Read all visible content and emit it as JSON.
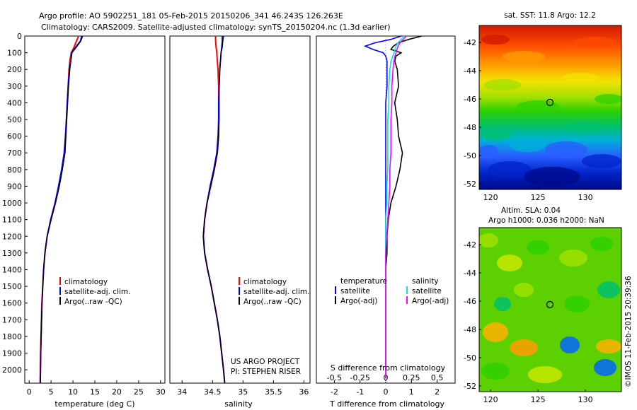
{
  "header": {
    "line1": "Argo profile: AO 5902251_181 05-Feb-2015 20150206_341 46.243S 126.263E",
    "line2": "Climatology: CARS2009. Satellite-adjusted climatology: synTS_20150204.nc (1.3d earlier)"
  },
  "side_stamp": "©IMOS 11-Feb-2015 20:39:36",
  "colors": {
    "climatology": "#ff0000",
    "satellite": "#0000ff",
    "argo": "#000000",
    "sal_satellite": "#00e5e5",
    "sal_argo": "#ff00ff",
    "float_marker": "#000000"
  },
  "legends": {
    "temperature_panel": [
      "climatology",
      "satellite-adj. clim.",
      "Argo(..raw -QC)"
    ],
    "salinity_panel": [
      "climatology",
      "satellite-adj. clim.",
      "Argo(..raw -QC)"
    ],
    "diff_panel": {
      "temperature_head": "temperature",
      "salinity_head": "salinity",
      "temperature_items": [
        "satellite",
        "Argo(-adj)"
      ],
      "salinity_items": [
        "satellite",
        "Argo(-adj)"
      ]
    }
  },
  "credits": {
    "line1": "US ARGO PROJECT",
    "line2": "PI: STEPHEN RISER"
  },
  "chart_data": [
    {
      "type": "line",
      "name": "temperature",
      "xlabel": "temperature (deg C)",
      "ylabel": "",
      "xlim": [
        -1,
        31
      ],
      "ylim": [
        2080,
        0
      ],
      "xticks": [
        0,
        5,
        10,
        15,
        20,
        25,
        30
      ],
      "yticks": [
        0,
        100,
        200,
        300,
        400,
        500,
        600,
        700,
        800,
        900,
        1000,
        1100,
        1200,
        1300,
        1400,
        1500,
        1600,
        1700,
        1800,
        1900,
        2000
      ],
      "depth": [
        0,
        30,
        70,
        100,
        150,
        200,
        300,
        400,
        500,
        600,
        700,
        800,
        900,
        1000,
        1100,
        1200,
        1300,
        1400,
        1500,
        1600,
        1700,
        1800,
        1900,
        2000,
        2080
      ],
      "series": [
        {
          "name": "climatology",
          "values": [
            11.3,
            10.8,
            10.2,
            9.6,
            9.3,
            9.1,
            8.9,
            8.7,
            8.5,
            8.3,
            8.0,
            7.5,
            6.8,
            6.0,
            5.0,
            4.1,
            3.6,
            3.3,
            3.1,
            2.9,
            2.8,
            2.7,
            2.6,
            2.55,
            2.5
          ]
        },
        {
          "name": "satellite-adj. clim.",
          "values": [
            12.0,
            11.7,
            10.5,
            9.7,
            9.5,
            9.2,
            8.9,
            8.7,
            8.5,
            8.3,
            8.0,
            7.4,
            6.7,
            5.9,
            4.9,
            4.1,
            3.6,
            3.3,
            3.1,
            2.95,
            2.85,
            2.75,
            2.65,
            2.6,
            2.55
          ]
        },
        {
          "name": "Argo(..raw -QC)",
          "values": [
            12.2,
            11.8,
            10.7,
            9.8,
            9.5,
            9.3,
            9.0,
            8.8,
            8.6,
            8.4,
            8.2,
            7.6,
            6.9,
            6.0,
            5.0,
            4.1,
            3.6,
            3.3,
            3.1,
            2.95,
            2.85,
            2.75,
            2.65,
            2.6,
            2.55
          ]
        }
      ]
    },
    {
      "type": "line",
      "name": "salinity",
      "xlabel": "salinity",
      "xlim": [
        33.8,
        36.1
      ],
      "ylim": [
        2080,
        0
      ],
      "xticks": [
        34,
        34.5,
        35,
        35.5,
        36
      ],
      "depth": [
        0,
        30,
        70,
        100,
        150,
        200,
        300,
        400,
        500,
        600,
        700,
        800,
        900,
        1000,
        1100,
        1200,
        1300,
        1400,
        1500,
        1600,
        1700,
        1800,
        1900,
        2000,
        2080
      ],
      "series": [
        {
          "name": "climatology",
          "values": [
            34.55,
            34.55,
            34.56,
            34.57,
            34.58,
            34.59,
            34.6,
            34.6,
            34.6,
            34.6,
            34.58,
            34.53,
            34.47,
            34.41,
            34.37,
            34.35,
            34.37,
            34.42,
            34.48,
            34.53,
            34.58,
            34.62,
            34.65,
            34.68,
            34.7
          ]
        },
        {
          "name": "satellite-adj. clim.",
          "values": [
            34.66,
            34.66,
            34.65,
            34.64,
            34.63,
            34.62,
            34.61,
            34.6,
            34.6,
            34.59,
            34.57,
            34.52,
            34.46,
            34.41,
            34.37,
            34.35,
            34.37,
            34.42,
            34.48,
            34.53,
            34.58,
            34.62,
            34.65,
            34.68,
            34.7
          ]
        },
        {
          "name": "Argo(..raw -QC)",
          "values": [
            34.68,
            34.67,
            34.66,
            34.64,
            34.63,
            34.62,
            34.61,
            34.61,
            34.61,
            34.6,
            34.58,
            34.53,
            34.47,
            34.41,
            34.37,
            34.35,
            34.37,
            34.42,
            34.48,
            34.53,
            34.58,
            34.62,
            34.65,
            34.68,
            34.7
          ]
        }
      ]
    },
    {
      "type": "line",
      "name": "difference",
      "xlabel": "T difference from climatology",
      "top_label": "S difference from climatology",
      "xlim": [
        -2.7,
        2.7
      ],
      "ylim": [
        2080,
        0
      ],
      "xticks": [
        -2,
        -1,
        0,
        1,
        2
      ],
      "sal_ticks": [
        -0.5,
        -0.25,
        0,
        0.25,
        0.5
      ],
      "depth": [
        0,
        20,
        40,
        60,
        80,
        100,
        120,
        150,
        200,
        300,
        400,
        500,
        600,
        700,
        800,
        900,
        1000,
        1100,
        1200,
        1300,
        1400,
        1600,
        1800,
        2000,
        2050
      ],
      "series": [
        {
          "name": "temperature satellite",
          "values": [
            0.6,
            0.2,
            -0.4,
            -0.8,
            -0.5,
            -0.1,
            0.0,
            0.05,
            0.05,
            0.05,
            0.0,
            0.0,
            0.0,
            0.0,
            0.0,
            0.0,
            0.0,
            0.0,
            0.0,
            0.0,
            0.0,
            0.0,
            0.0,
            0.0,
            0.0
          ]
        },
        {
          "name": "temperature Argo(-adj)",
          "values": [
            1.4,
            0.9,
            0.5,
            0.3,
            0.2,
            0.6,
            0.4,
            0.35,
            0.45,
            0.5,
            0.35,
            0.45,
            0.5,
            0.65,
            0.55,
            0.4,
            0.2,
            0.1,
            0.05,
            0.05,
            0.0,
            0.0,
            0.0,
            0.0,
            0.0
          ]
        },
        {
          "name": "salinity satellite",
          "values": [
            0.18,
            0.15,
            0.12,
            0.1,
            0.09,
            0.08,
            0.07,
            0.05,
            0.04,
            0.03,
            0.03,
            0.02,
            0.02,
            0.02,
            0.02,
            0.01,
            0.01,
            0.0,
            0.0,
            0.0,
            0.0,
            0.0,
            0.0,
            0.0,
            0.0
          ]
        },
        {
          "name": "salinity Argo(-adj)",
          "values": [
            0.2,
            0.17,
            0.14,
            0.12,
            0.11,
            0.1,
            0.09,
            0.08,
            0.07,
            0.06,
            0.06,
            0.05,
            0.05,
            0.05,
            0.04,
            0.04,
            0.03,
            0.02,
            0.01,
            0.0,
            0.0,
            0.0,
            0.0,
            0.0,
            0.0
          ]
        }
      ]
    },
    {
      "type": "heatmap",
      "name": "sst-map",
      "title": "sat. SST: 11.8 Argo: 12.2",
      "xticks": [
        120,
        125,
        130
      ],
      "yticks": [
        -42,
        -44,
        -46,
        -48,
        -50,
        -52
      ],
      "xlim": [
        118.8,
        133.8
      ],
      "ylim": [
        -40.8,
        -52.4
      ],
      "float_position": [
        126.263,
        -46.243
      ]
    },
    {
      "type": "heatmap",
      "name": "sla-map",
      "title_line1": "Altim. SLA: 0.04",
      "title_line2": "Argo h1000: 0.036 h2000: NaN",
      "xticks": [
        120,
        125,
        130
      ],
      "yticks": [
        -42,
        -44,
        -46,
        -48,
        -50,
        -52
      ],
      "xlim": [
        118.8,
        133.8
      ],
      "ylim": [
        -40.8,
        -52.4
      ],
      "float_position": [
        126.263,
        -46.243
      ]
    }
  ]
}
